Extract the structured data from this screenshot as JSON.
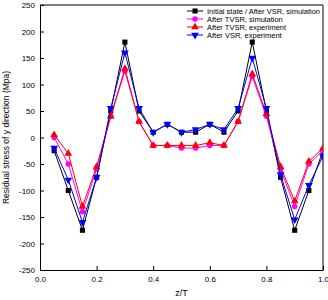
{
  "chart_data": {
    "type": "line",
    "x_label": "z/T",
    "y_label": "Residual stress of y direction (Mpa)",
    "x": [
      0.05,
      0.1,
      0.15,
      0.2,
      0.25,
      0.3,
      0.35,
      0.4,
      0.45,
      0.5,
      0.55,
      0.6,
      0.65,
      0.7,
      0.75,
      0.8,
      0.85,
      0.9,
      0.95,
      1.0
    ],
    "series": [
      {
        "name": "Initial state / After VSR, simulation",
        "color": "#000000",
        "marker": "square",
        "values": [
          -25,
          -100,
          -175,
          -75,
          50,
          180,
          50,
          10,
          25,
          10,
          10,
          25,
          10,
          50,
          180,
          50,
          -75,
          -175,
          -100,
          -25
        ]
      },
      {
        "name": "After TVSR, simulation",
        "color": "#ff00ff",
        "marker": "circle",
        "values": [
          0,
          -50,
          -140,
          -60,
          40,
          125,
          30,
          -15,
          -15,
          -20,
          -20,
          -15,
          -15,
          30,
          115,
          40,
          -60,
          -130,
          -50,
          -25
        ]
      },
      {
        "name": "After TVSR, experiment",
        "color": "#ff0000",
        "marker": "triangle-up",
        "values": [
          5,
          -30,
          -130,
          -55,
          40,
          130,
          30,
          -15,
          -15,
          -15,
          -15,
          -10,
          -15,
          30,
          120,
          45,
          -55,
          -120,
          -45,
          -20
        ]
      },
      {
        "name": "After VSR, experiment",
        "color": "#0000ff",
        "marker": "triangle-down",
        "values": [
          -20,
          -80,
          -160,
          -75,
          55,
          160,
          55,
          10,
          25,
          10,
          15,
          25,
          15,
          55,
          150,
          55,
          -70,
          -155,
          -90,
          -35
        ]
      }
    ],
    "xlim": [
      0,
      1
    ],
    "xticks": [
      {
        "value": 0,
        "label": "0.0"
      },
      {
        "value": 0.2,
        "label": "0.2"
      },
      {
        "value": 0.4,
        "label": "0.4"
      },
      {
        "value": 0.6,
        "label": "0.6"
      },
      {
        "value": 0.8,
        "label": "0.8"
      },
      {
        "value": 1,
        "label": "1.0"
      }
    ],
    "ylim": [
      -250,
      250
    ],
    "yticks": [
      -250,
      -200,
      -150,
      -100,
      -50,
      0,
      50,
      100,
      150,
      200,
      250
    ],
    "legend": "upper right",
    "grid": false
  }
}
